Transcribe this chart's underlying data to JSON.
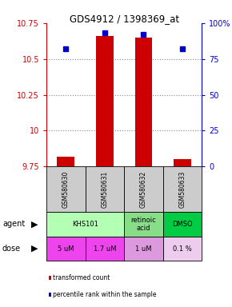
{
  "title": "GDS4912 / 1398369_at",
  "samples": [
    "GSM580630",
    "GSM580631",
    "GSM580632",
    "GSM580633"
  ],
  "red_values": [
    9.82,
    10.66,
    10.65,
    9.8
  ],
  "blue_values": [
    82,
    93,
    92,
    82
  ],
  "ylim_left": [
    9.75,
    10.75
  ],
  "ylim_right": [
    0,
    100
  ],
  "yticks_left": [
    9.75,
    10.0,
    10.25,
    10.5,
    10.75
  ],
  "ytick_labels_left": [
    "9.75",
    "10",
    "10.25",
    "10.5",
    "10.75"
  ],
  "yticks_right": [
    0,
    25,
    50,
    75,
    100
  ],
  "ytick_labels_right": [
    "0",
    "25",
    "50",
    "75",
    "100%"
  ],
  "bar_bottom": 9.75,
  "red_color": "#cc0000",
  "blue_color": "#0000cc",
  "grid_color": "#888888",
  "sample_bg_color": "#cccccc",
  "agent_configs": [
    {
      "cols": [
        0,
        1
      ],
      "label": "KHS101",
      "color": "#b3ffb3"
    },
    {
      "cols": [
        2,
        2
      ],
      "label": "retinoic\nacid",
      "color": "#88dd88"
    },
    {
      "cols": [
        3,
        3
      ],
      "label": "DMSO",
      "color": "#00cc44"
    }
  ],
  "dose_configs": [
    {
      "col": 0,
      "label": "5 uM",
      "color": "#ee44ee"
    },
    {
      "col": 1,
      "label": "1.7 uM",
      "color": "#ee44ee"
    },
    {
      "col": 2,
      "label": "1 uM",
      "color": "#dd99dd"
    },
    {
      "col": 3,
      "label": "0.1 %",
      "color": "#eeccee"
    }
  ],
  "legend_items": [
    {
      "color": "#cc0000",
      "label": "transformed count"
    },
    {
      "color": "#0000cc",
      "label": "percentile rank within the sample"
    }
  ]
}
